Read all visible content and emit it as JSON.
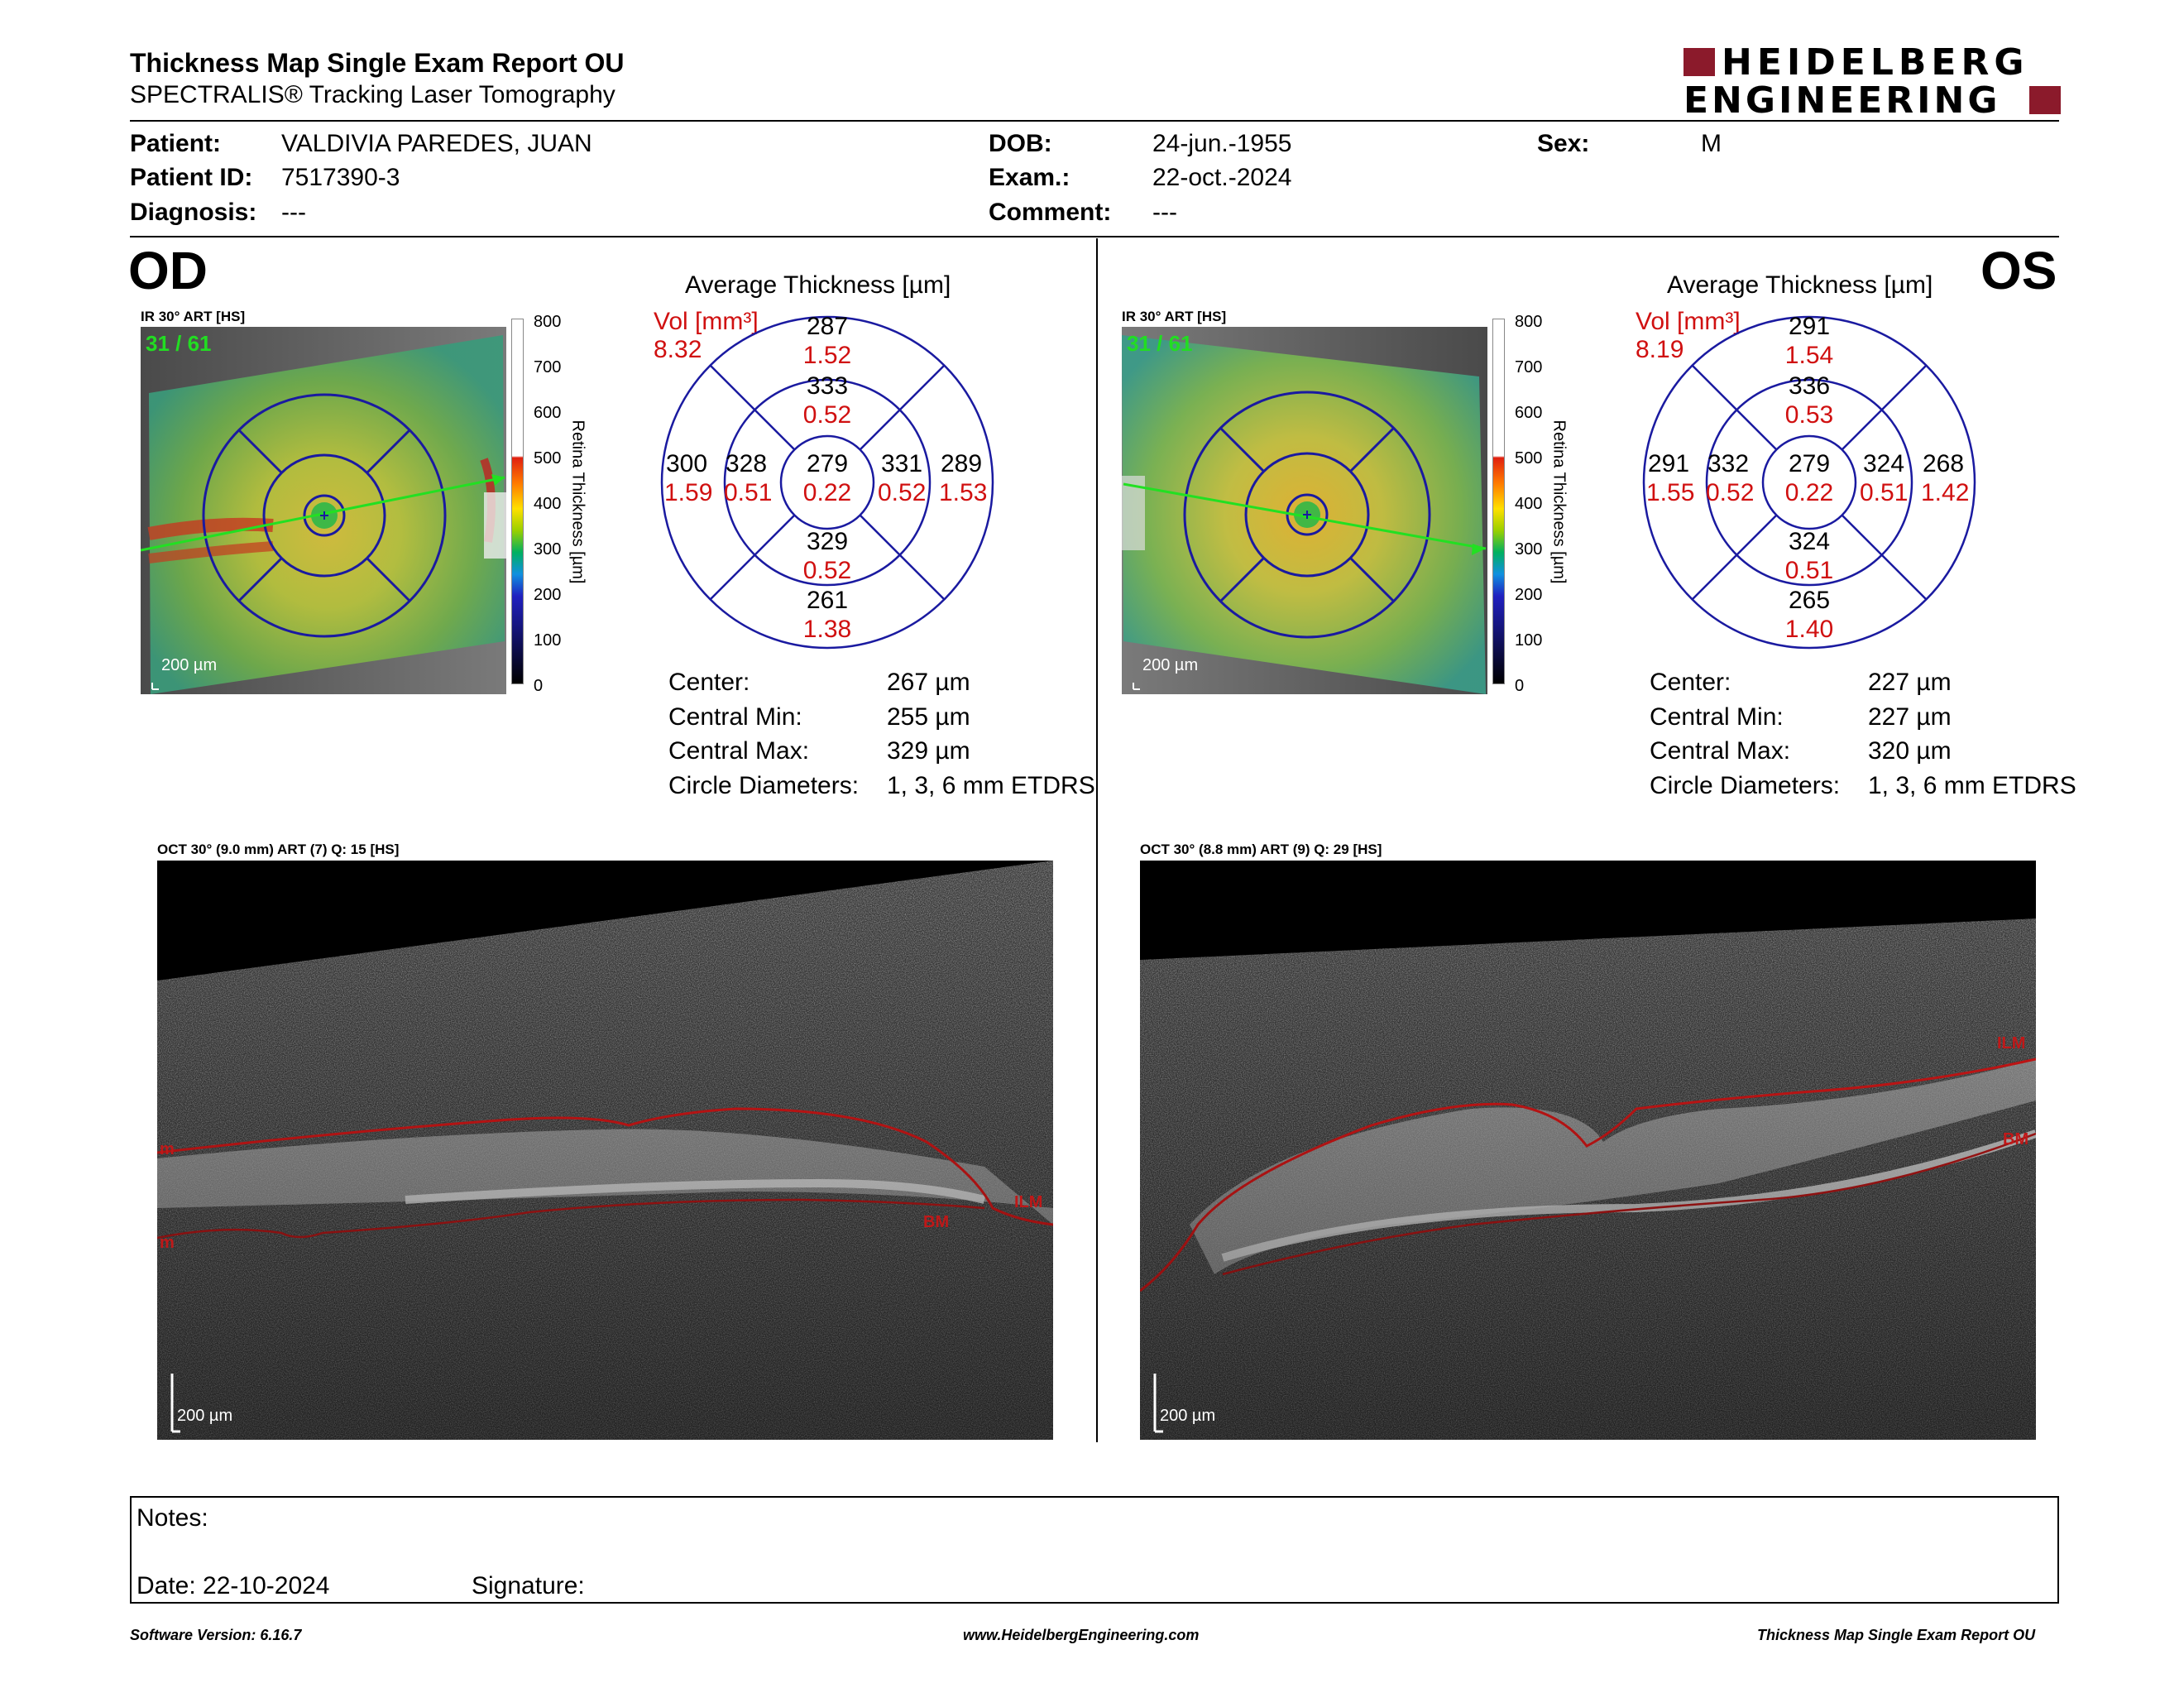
{
  "header": {
    "title": "Thickness Map Single Exam Report OU",
    "subtitle": "SPECTRALIS® Tracking Laser Tomography",
    "brand_line1": "HEIDELBERG",
    "brand_line2": "ENGINEERING",
    "brand_color": "#8b1a2b"
  },
  "patient": {
    "patient_label": "Patient:",
    "patient_value": "VALDIVIA PAREDES, JUAN",
    "id_label": "Patient ID:",
    "id_value": "7517390-3",
    "diagnosis_label": "Diagnosis:",
    "diagnosis_value": "---",
    "dob_label": "DOB:",
    "dob_value": "24-jun.-1955",
    "exam_label": "Exam.:",
    "exam_value": "22-oct.-2024",
    "comment_label": "Comment:",
    "comment_value": "---",
    "sex_label": "Sex:",
    "sex_value": "M"
  },
  "od": {
    "eye": "OD",
    "ir_label": "IR 30° ART [HS]",
    "frame_count": "31 / 61",
    "scale": "200 µm",
    "colorbar_ticks": [
      "800",
      "700",
      "600",
      "500",
      "400",
      "300",
      "200",
      "100",
      "0"
    ],
    "colorbar_title": "Retina Thickness [µm]",
    "avg_title": "Average Thickness [µm]",
    "vol_label": "Vol [mm³]",
    "vol_total": "8.32",
    "sectors": {
      "center": {
        "t": "279",
        "v": "0.22"
      },
      "inner_sup": {
        "t": "333",
        "v": "0.52"
      },
      "inner_inf": {
        "t": "329",
        "v": "0.52"
      },
      "inner_left": {
        "t": "328",
        "v": "0.51"
      },
      "inner_right": {
        "t": "331",
        "v": "0.52"
      },
      "outer_sup": {
        "t": "287",
        "v": "1.52"
      },
      "outer_inf": {
        "t": "261",
        "v": "1.38"
      },
      "outer_left": {
        "t": "300",
        "v": "1.59"
      },
      "outer_right": {
        "t": "289",
        "v": "1.53"
      }
    },
    "stats": {
      "center_label": "Center:",
      "center_value": "267 µm",
      "cmin_label": "Central Min:",
      "cmin_value": "255 µm",
      "cmax_label": "Central Max:",
      "cmax_value": "329 µm",
      "diam_label": "Circle Diameters:",
      "diam_value": "1, 3, 6 mm ETDRS"
    },
    "oct_label": "OCT 30° (9.0 mm) ART (7) Q: 15 [HS]",
    "oct_scale": "200 µm",
    "ilm_label": "ILM",
    "bm_label": "BM",
    "left_edge_top": "m",
    "left_edge_bottom": "m"
  },
  "os": {
    "eye": "OS",
    "ir_label": "IR 30° ART [HS]",
    "frame_count": "31 / 61",
    "scale": "200 µm",
    "colorbar_ticks": [
      "800",
      "700",
      "600",
      "500",
      "400",
      "300",
      "200",
      "100",
      "0"
    ],
    "colorbar_title": "Retina Thickness [µm]",
    "avg_title": "Average Thickness [µm]",
    "vol_label": "Vol [mm³]",
    "vol_total": "8.19",
    "sectors": {
      "center": {
        "t": "279",
        "v": "0.22"
      },
      "inner_sup": {
        "t": "336",
        "v": "0.53"
      },
      "inner_inf": {
        "t": "324",
        "v": "0.51"
      },
      "inner_left": {
        "t": "332",
        "v": "0.52"
      },
      "inner_right": {
        "t": "324",
        "v": "0.51"
      },
      "outer_sup": {
        "t": "291",
        "v": "1.54"
      },
      "outer_inf": {
        "t": "265",
        "v": "1.40"
      },
      "outer_left": {
        "t": "291",
        "v": "1.55"
      },
      "outer_right": {
        "t": "268",
        "v": "1.42"
      }
    },
    "stats": {
      "center_label": "Center:",
      "center_value": "227 µm",
      "cmin_label": "Central Min:",
      "cmin_value": "227 µm",
      "cmax_label": "Central Max:",
      "cmax_value": "320 µm",
      "diam_label": "Circle Diameters:",
      "diam_value": "1, 3, 6 mm ETDRS"
    },
    "oct_label": "OCT 30° (8.8 mm) ART (9) Q: 29 [HS]",
    "oct_scale": "200 µm",
    "ilm_label": "ILM",
    "bm_label": "BM"
  },
  "notes": {
    "notes_label": "Notes:",
    "date_label": "Date: 22-10-2024",
    "signature_label": "Signature:"
  },
  "footer": {
    "software": "Software Version: 6.16.7",
    "website": "www.HeidelbergEngineering.com",
    "report": "Thickness Map Single Exam Report OU"
  }
}
